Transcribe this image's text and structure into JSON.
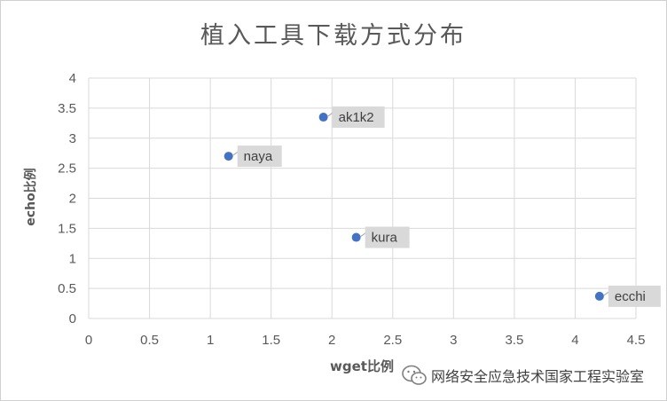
{
  "chart_data": {
    "type": "scatter",
    "title": "植入工具下载方式分布",
    "xlabel": "wget比例",
    "ylabel": "echo比例",
    "xlim": [
      0,
      4.5
    ],
    "ylim": [
      0,
      4
    ],
    "x_ticks": [
      "0",
      "0.5",
      "1",
      "1.5",
      "2",
      "2.5",
      "3",
      "3.5",
      "4",
      "4.5"
    ],
    "y_ticks": [
      "0",
      "0.5",
      "1",
      "1.5",
      "2",
      "2.5",
      "3",
      "3.5",
      "4"
    ],
    "grid": true,
    "marker_color": "#4472c4",
    "points": [
      {
        "label": "ak1k2",
        "x": 1.93,
        "y": 3.35
      },
      {
        "label": "naya",
        "x": 1.15,
        "y": 2.7
      },
      {
        "label": "kura",
        "x": 2.2,
        "y": 1.35
      },
      {
        "label": "ecchi",
        "x": 4.2,
        "y": 0.37
      }
    ]
  },
  "watermark": {
    "icon": "wechat-icon",
    "text": "网络安全应急技术国家工程实验室"
  }
}
